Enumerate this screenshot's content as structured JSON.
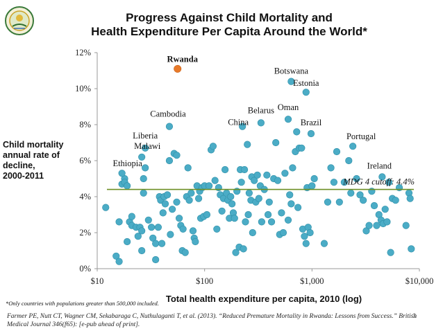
{
  "title_line1": "Progress Against Child Mortality and",
  "title_line2": "Health Expenditure Per Capita Around the World*",
  "footnote": "*Only countries with populations greater than 500,000 included.",
  "citation": "Farmer PE, Nutt CT, Wagner CM, Sekabaraga C, Nuthulaganti T, et al. (2013). “Reduced Premature Mortality in Rwanda: Lessons from Success.” British Medical Journal 346(f65): [e-pub ahead of print].",
  "page_number": "3",
  "colors": {
    "points": "#4bacc6",
    "point_edge": "#2e8fa8",
    "highlight": "#e87a2a",
    "cutoff_line": "#6b8e23"
  },
  "chart_data": {
    "type": "scatter",
    "xlabel": "Total health expenditure per capita, 2010 (log)",
    "ylabel_lines": [
      "Child mortality",
      "annual rate of",
      "decline,",
      "2000-2011"
    ],
    "xscale": "log",
    "xlim": [
      10,
      10000
    ],
    "ylim": [
      0,
      12
    ],
    "x_ticks": [
      10,
      100,
      1000,
      10000
    ],
    "x_tick_labels": [
      "$10",
      "$100",
      "$1,000",
      "$10,000"
    ],
    "y_ticks": [
      0,
      2,
      4,
      6,
      8,
      10,
      12
    ],
    "y_tick_labels": [
      "0%",
      "2%",
      "4%",
      "6%",
      "8%",
      "10%",
      "12%"
    ],
    "reference_line": {
      "y": 4.4,
      "label": "MDG 4 cutoff: 4.4%"
    },
    "highlight": {
      "name": "Rwanda",
      "x": 56,
      "y": 11.1
    },
    "labeled_points": [
      {
        "name": "Botswana",
        "x": 640,
        "y": 10.4
      },
      {
        "name": "Estonia",
        "x": 880,
        "y": 9.8
      },
      {
        "name": "Cambodia",
        "x": 47,
        "y": 7.9
      },
      {
        "name": "Belarus",
        "x": 335,
        "y": 8.1
      },
      {
        "name": "Oman",
        "x": 600,
        "y": 8.3
      },
      {
        "name": "China",
        "x": 225,
        "y": 7.9
      },
      {
        "name": "Brazil",
        "x": 980,
        "y": 7.5
      },
      {
        "name": "Liberia",
        "x": 28,
        "y": 6.7
      },
      {
        "name": "Portugal",
        "x": 2400,
        "y": 6.8
      },
      {
        "name": "Malawi",
        "x": 26,
        "y": 6.2
      },
      {
        "name": "Ethiopia",
        "x": 17,
        "y": 5.3
      },
      {
        "name": "Ireland",
        "x": 4500,
        "y": 5.1
      }
    ],
    "points": [
      [
        12,
        3.4
      ],
      [
        15,
        0.7
      ],
      [
        16,
        0.4
      ],
      [
        16,
        2.6
      ],
      [
        17,
        4.7
      ],
      [
        18,
        5.0
      ],
      [
        18,
        4.8
      ],
      [
        19,
        4.6
      ],
      [
        19,
        1.5
      ],
      [
        20,
        2.6
      ],
      [
        21,
        2.9
      ],
      [
        21,
        2.4
      ],
      [
        23,
        2.3
      ],
      [
        24,
        1.8
      ],
      [
        25,
        2.3
      ],
      [
        26,
        2.1
      ],
      [
        26,
        1.0
      ],
      [
        27,
        5.0
      ],
      [
        27,
        4.2
      ],
      [
        28,
        5.6
      ],
      [
        30,
        2.7
      ],
      [
        32,
        2.3
      ],
      [
        33,
        1.7
      ],
      [
        35,
        1.4
      ],
      [
        35,
        0.5
      ],
      [
        37,
        2.3
      ],
      [
        38,
        4.0
      ],
      [
        39,
        3.8
      ],
      [
        40,
        1.4
      ],
      [
        41,
        3.1
      ],
      [
        42,
        4.0
      ],
      [
        43,
        3.6
      ],
      [
        45,
        4.1
      ],
      [
        47,
        6.0
      ],
      [
        48,
        1.9
      ],
      [
        50,
        3.3
      ],
      [
        52,
        6.4
      ],
      [
        55,
        6.3
      ],
      [
        55,
        3.7
      ],
      [
        58,
        2.8
      ],
      [
        60,
        2.4
      ],
      [
        62,
        1.0
      ],
      [
        63,
        2.2
      ],
      [
        66,
        0.9
      ],
      [
        68,
        4.0
      ],
      [
        70,
        5.6
      ],
      [
        72,
        3.8
      ],
      [
        75,
        4.2
      ],
      [
        78,
        2.1
      ],
      [
        80,
        1.7
      ],
      [
        82,
        1.5
      ],
      [
        85,
        4.6
      ],
      [
        88,
        3.9
      ],
      [
        90,
        4.3
      ],
      [
        92,
        2.8
      ],
      [
        95,
        4.5
      ],
      [
        98,
        2.9
      ],
      [
        100,
        4.6
      ],
      [
        105,
        3.0
      ],
      [
        110,
        4.6
      ],
      [
        115,
        6.6
      ],
      [
        120,
        6.8
      ],
      [
        125,
        4.9
      ],
      [
        130,
        2.2
      ],
      [
        135,
        4.5
      ],
      [
        140,
        4.1
      ],
      [
        145,
        3.2
      ],
      [
        150,
        3.9
      ],
      [
        155,
        5.5
      ],
      [
        160,
        4.2
      ],
      [
        165,
        3.8
      ],
      [
        170,
        2.8
      ],
      [
        175,
        4.0
      ],
      [
        180,
        3.6
      ],
      [
        185,
        3.1
      ],
      [
        190,
        2.8
      ],
      [
        195,
        0.9
      ],
      [
        200,
        4.3
      ],
      [
        210,
        1.2
      ],
      [
        215,
        5.5
      ],
      [
        220,
        4.8
      ],
      [
        230,
        1.1
      ],
      [
        235,
        5.5
      ],
      [
        240,
        2.6
      ],
      [
        250,
        6.9
      ],
      [
        255,
        3.0
      ],
      [
        260,
        4.2
      ],
      [
        270,
        3.8
      ],
      [
        275,
        5.1
      ],
      [
        280,
        2.0
      ],
      [
        290,
        4.9
      ],
      [
        300,
        3.7
      ],
      [
        310,
        5.2
      ],
      [
        320,
        3.9
      ],
      [
        330,
        4.6
      ],
      [
        340,
        2.6
      ],
      [
        360,
        4.4
      ],
      [
        380,
        5.2
      ],
      [
        390,
        3.0
      ],
      [
        400,
        3.7
      ],
      [
        420,
        2.6
      ],
      [
        440,
        5.0
      ],
      [
        460,
        7.0
      ],
      [
        480,
        4.9
      ],
      [
        500,
        1.9
      ],
      [
        520,
        3.1
      ],
      [
        540,
        2.0
      ],
      [
        560,
        5.3
      ],
      [
        600,
        2.7
      ],
      [
        620,
        4.1
      ],
      [
        640,
        3.6
      ],
      [
        660,
        5.6
      ],
      [
        700,
        6.5
      ],
      [
        720,
        7.6
      ],
      [
        740,
        3.4
      ],
      [
        760,
        6.7
      ],
      [
        800,
        6.7
      ],
      [
        820,
        2.2
      ],
      [
        850,
        1.8
      ],
      [
        880,
        1.4
      ],
      [
        900,
        4.5
      ],
      [
        920,
        2.3
      ],
      [
        960,
        2.0
      ],
      [
        1000,
        4.6
      ],
      [
        1050,
        5.0
      ],
      [
        1300,
        1.4
      ],
      [
        1400,
        3.7
      ],
      [
        1500,
        5.6
      ],
      [
        1600,
        4.8
      ],
      [
        1700,
        6.5
      ],
      [
        1800,
        3.7
      ],
      [
        2000,
        4.8
      ],
      [
        2200,
        6.0
      ],
      [
        2300,
        4.2
      ],
      [
        2600,
        5.0
      ],
      [
        2800,
        4.1
      ],
      [
        3000,
        3.8
      ],
      [
        3200,
        2.1
      ],
      [
        3400,
        2.4
      ],
      [
        3600,
        4.3
      ],
      [
        3800,
        3.5
      ],
      [
        4000,
        2.4
      ],
      [
        4200,
        3.0
      ],
      [
        4400,
        2.7
      ],
      [
        4600,
        2.5
      ],
      [
        4800,
        3.3
      ],
      [
        5000,
        2.6
      ],
      [
        5200,
        4.8
      ],
      [
        5400,
        0.9
      ],
      [
        5600,
        3.9
      ],
      [
        6000,
        3.8
      ],
      [
        6500,
        4.5
      ],
      [
        7500,
        2.4
      ],
      [
        8000,
        4.2
      ],
      [
        8200,
        3.9
      ],
      [
        8400,
        1.1
      ]
    ]
  }
}
